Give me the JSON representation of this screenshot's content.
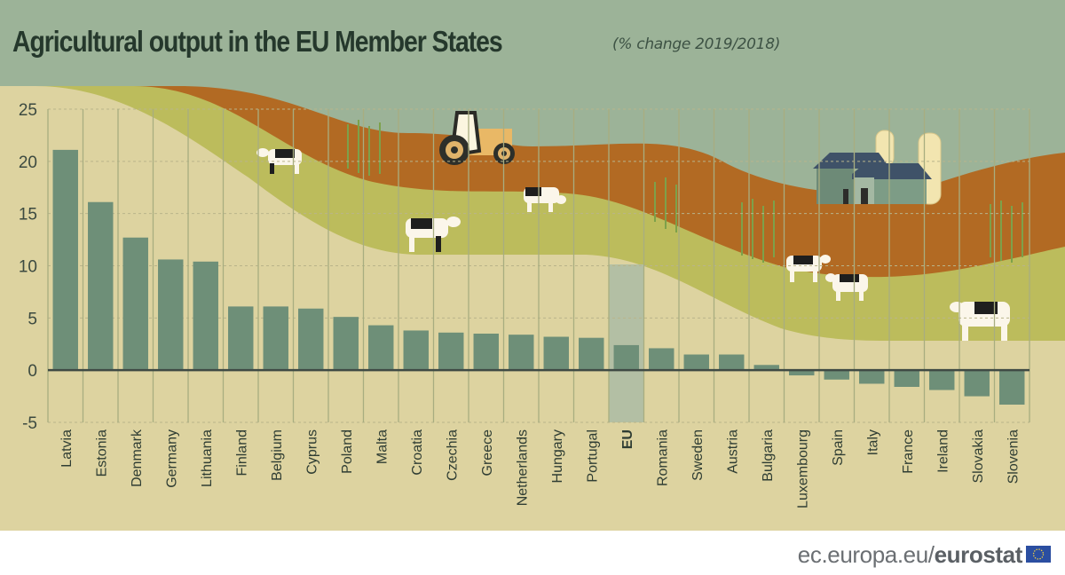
{
  "header": {
    "title": "Agricultural output in the EU Member States",
    "subtitle": "(% change 2019/2018)"
  },
  "footer": {
    "link_prefix": "ec.europa.eu/",
    "link_brand": "eurostat",
    "flag_icon": "eu-flag-icon"
  },
  "colors": {
    "background_sky": "#9cb398",
    "panel": "#ddd3a0",
    "bar": "#6e8f78",
    "bar_eu_highlight": "#b3bfa4",
    "zero_line": "#3f4a44",
    "hill_brown": "#b26a23",
    "hill_olive": "#bcbc5c",
    "text_dark": "#25382c"
  },
  "decorations": [
    "cow-icon",
    "cow-icon",
    "cow-icon",
    "cow-icon",
    "cow-icon",
    "cow-icon",
    "tractor-icon",
    "farmhouse-icon",
    "silo-icon",
    "corn-icon"
  ],
  "chart_data": {
    "type": "bar",
    "title": "Agricultural output in the EU Member States",
    "subtitle": "(% change 2019/2018)",
    "xlabel": "",
    "ylabel": "",
    "ylim": [
      -5,
      25
    ],
    "yticks": [
      -5,
      0,
      5,
      10,
      15,
      20,
      25
    ],
    "grid": true,
    "legend": "none",
    "highlight_category": "EU",
    "categories": [
      "Latvia",
      "Estonia",
      "Denmark",
      "Germany",
      "Lithuania",
      "Finland",
      "Belgium",
      "Cyprus",
      "Poland",
      "Malta",
      "Croatia",
      "Czechia",
      "Greece",
      "Netherlands",
      "Hungary",
      "Portugal",
      "EU",
      "Romania",
      "Sweden",
      "Austria",
      "Bulgaria",
      "Luxembourg",
      "Spain",
      "Italy",
      "France",
      "Ireland",
      "Slovakia",
      "Slovenia"
    ],
    "values": [
      21.1,
      16.1,
      12.7,
      10.6,
      10.4,
      6.1,
      6.1,
      5.9,
      5.1,
      4.3,
      3.8,
      3.6,
      3.5,
      3.4,
      3.2,
      3.1,
      2.4,
      2.1,
      1.5,
      1.5,
      0.5,
      -0.5,
      -0.9,
      -1.3,
      -1.6,
      -1.9,
      -2.5,
      -3.3
    ]
  }
}
